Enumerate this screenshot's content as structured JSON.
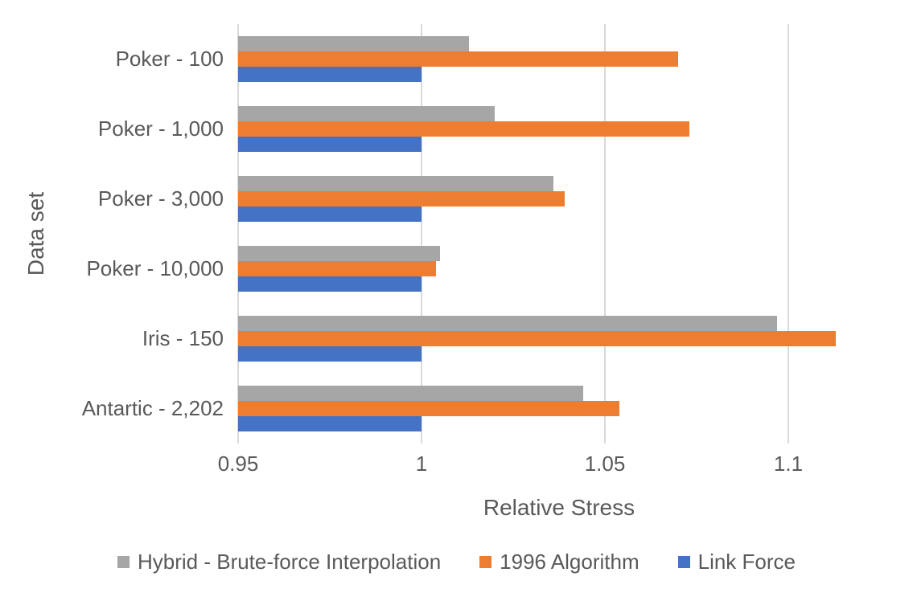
{
  "chart_data": {
    "type": "bar",
    "orientation": "horizontal",
    "title": "",
    "xlabel": "Relative Stress",
    "ylabel": "Data set",
    "categories": [
      "Poker - 100",
      "Poker - 1,000",
      "Poker - 3,000",
      "Poker - 10,000",
      "Iris - 150",
      "Antartic - 2,202"
    ],
    "series": [
      {
        "name": "Hybrid - Brute-force Interpolation",
        "color": "#A6A6A6",
        "values": [
          1.013,
          1.02,
          1.036,
          1.005,
          1.097,
          1.044
        ]
      },
      {
        "name": "1996 Algorithm",
        "color": "#ED7D31",
        "values": [
          1.07,
          1.073,
          1.039,
          1.004,
          1.113,
          1.054
        ]
      },
      {
        "name": "Link Force",
        "color": "#4472C4",
        "values": [
          1.0,
          1.0,
          1.0,
          1.0,
          1.0,
          1.0
        ]
      }
    ],
    "xlim": [
      0.95,
      1.125
    ],
    "xticks": [
      0.95,
      1.0,
      1.05,
      1.1
    ],
    "xtick_labels": [
      "0.95",
      "1",
      "1.05",
      "1.1"
    ],
    "grid": true,
    "legend_position": "bottom",
    "colors": {
      "text": "#595959",
      "gridline": "#D9D9D9",
      "background": "#FFFFFF"
    }
  }
}
